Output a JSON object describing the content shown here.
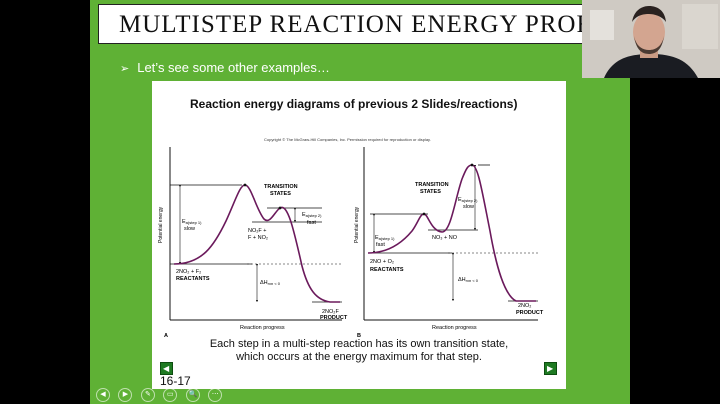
{
  "slide": {
    "title": "MULTISTEP REACTION ENERGY PROFILE",
    "bullet": "Let’s see some other examples…",
    "slide_number": "16-17",
    "caption_line1": "Each step in a multi-step reaction has its own transition state,",
    "caption_line2": "which occurs at the energy maximum for that step."
  },
  "figure": {
    "title": "Reaction energy diagrams of previous 2 Slides/reactions)",
    "copyright": "Copyright © The McGraw-Hill Companies, Inc. Permission required for reproduction or display.",
    "panel_a": {
      "letter": "A",
      "ylabel": "Potential energy",
      "xlabel": "Reaction progress",
      "transition_states": "TRANSITION",
      "transition_states2": "STATES",
      "ea1": "E",
      "ea1_sub": "a(step 1)",
      "ea1_rate": "slow",
      "ea2": "E",
      "ea2_sub": "a(step 2)",
      "ea2_rate": "fast",
      "intermediate1": "NO₂F +",
      "intermediate2": "F + NO₂",
      "reactants_formula": "2NO₂ + F₂",
      "reactants_label": "REACTANTS",
      "dh": "ΔH",
      "dh_rest": "rxn < 0",
      "product_formula": "2NO₂F",
      "product_label": "PRODUCT"
    },
    "panel_b": {
      "letter": "B",
      "ylabel": "Potential energy",
      "xlabel": "Reaction progress",
      "transition_states": "TRANSITION",
      "transition_states2": "STATES",
      "ea1": "E",
      "ea1_sub": "a(step 1)",
      "ea1_rate": "fast",
      "ea2": "E",
      "ea2_sub": "a(step 2)",
      "ea2_rate": "slow",
      "intermediate": "NO₃ + NO",
      "reactants_formula": "2NO + O₂",
      "reactants_label": "REACTANTS",
      "dh": "ΔH",
      "dh_rest": "rxn < 0",
      "product_formula": "2NO₂",
      "product_label": "PRODUCT"
    }
  },
  "player_controls": [
    "◀",
    "▶",
    "✎",
    "▭",
    "🔍",
    "⋯"
  ],
  "colors": {
    "slide_bg": "#5fb135",
    "curve": "#6b1a5c",
    "nav": "#1e7a22"
  }
}
